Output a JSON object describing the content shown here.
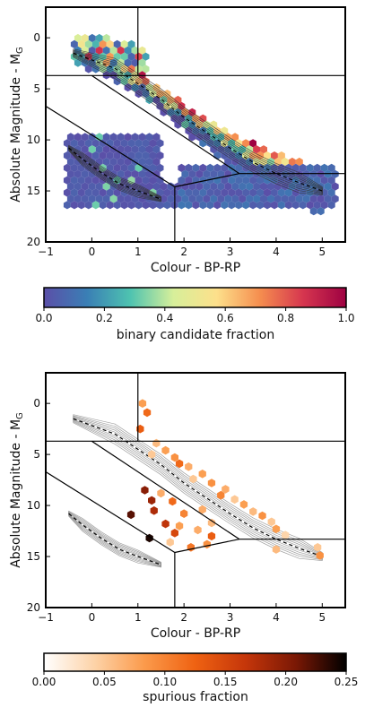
{
  "chart_data": [
    {
      "type": "heatmap",
      "plot_kind": "hexbin Hertzsprung-Russell diagram with density contours",
      "xlabel": "Colour - BP-RP",
      "ylabel": "Absolute Magnitude - M",
      "ylabel_subscript": "G",
      "xlim": [
        -1,
        5.5
      ],
      "ylim": [
        20,
        -3
      ],
      "y_inverted": true,
      "xticks": [
        "−1",
        "0",
        "1",
        "2",
        "3",
        "4",
        "5"
      ],
      "xtick_values": [
        -1,
        0,
        1,
        2,
        3,
        4,
        5
      ],
      "yticks": [
        "0",
        "5",
        "10",
        "15",
        "20"
      ],
      "ytick_values": [
        0,
        5,
        10,
        15,
        20
      ],
      "colorbar": {
        "label": "binary candidate fraction",
        "range": [
          0.0,
          1.0
        ],
        "ticks": [
          "0.0",
          "0.2",
          "0.4",
          "0.6",
          "0.8",
          "1.0"
        ],
        "tick_values": [
          0.0,
          0.2,
          0.4,
          0.6,
          0.8,
          1.0
        ],
        "colormap": "plasma-viridis (indigo to yellow to crimson)",
        "stops": [
          "#5b4fa8",
          "#3a7fb5",
          "#4ec3b0",
          "#d7ef9a",
          "#fde08b",
          "#f58e4f",
          "#d6364f",
          "#9e0142"
        ]
      },
      "regions": [
        {
          "name": "main sequence",
          "points": [
            [
              -0.4,
              1.5
            ],
            [
              0.5,
              3
            ],
            [
              1.0,
              4.5
            ],
            [
              1.5,
              6
            ],
            [
              2.0,
              7.8
            ],
            [
              2.5,
              9.3
            ],
            [
              3.0,
              10.8
            ],
            [
              3.5,
              12.2
            ],
            [
              4.0,
              13.3
            ],
            [
              4.5,
              14.2
            ],
            [
              5.0,
              15.0
            ]
          ]
        },
        {
          "name": "white dwarf sequence",
          "points": [
            [
              -0.5,
              10.8
            ],
            [
              -0.2,
              11.9
            ],
            [
              0.2,
              13.2
            ],
            [
              0.6,
              14.3
            ],
            [
              1.0,
              15.0
            ],
            [
              1.5,
              15.8
            ]
          ]
        }
      ],
      "dividing_lines": [
        [
          [
            1.0,
            -3
          ],
          [
            1.0,
            3.7
          ]
        ],
        [
          [
            -1,
            3.7
          ],
          [
            5.5,
            3.7
          ]
        ],
        [
          [
            0,
            3.7
          ],
          [
            3.2,
            13.3
          ]
        ],
        [
          [
            -1,
            6.7
          ],
          [
            1.8,
            14.6
          ]
        ],
        [
          [
            1.8,
            14.6
          ],
          [
            3.2,
            13.3
          ]
        ],
        [
          [
            3.2,
            13.3
          ],
          [
            5.5,
            13.3
          ]
        ],
        [
          [
            1.8,
            14.6
          ],
          [
            1.8,
            20
          ]
        ]
      ]
    },
    {
      "type": "heatmap",
      "plot_kind": "hexbin Hertzsprung-Russell diagram with density contours",
      "xlabel": "Colour - BP-RP",
      "ylabel": "Absolute Magnitude - M",
      "ylabel_subscript": "G",
      "xlim": [
        -1,
        5.5
      ],
      "ylim": [
        20,
        -3
      ],
      "y_inverted": true,
      "xticks": [
        "−1",
        "0",
        "1",
        "2",
        "3",
        "4",
        "5"
      ],
      "xtick_values": [
        -1,
        0,
        1,
        2,
        3,
        4,
        5
      ],
      "yticks": [
        "0",
        "5",
        "10",
        "15",
        "20"
      ],
      "ytick_values": [
        0,
        5,
        10,
        15,
        20
      ],
      "colorbar": {
        "label": "spurious fraction",
        "range": [
          0.0,
          0.25
        ],
        "ticks": [
          "0.00",
          "0.05",
          "0.10",
          "0.15",
          "0.20",
          "0.25"
        ],
        "tick_values": [
          0.0,
          0.05,
          0.1,
          0.15,
          0.2,
          0.25
        ],
        "colormap": "gist_heat reversed (white to orange to black)",
        "stops": [
          "#ffffff",
          "#fdd3a8",
          "#fb9a4b",
          "#ef6212",
          "#c5360a",
          "#7a1805",
          "#000000"
        ]
      },
      "points": [
        {
          "x": 1.1,
          "y": 0.0,
          "v": 0.08
        },
        {
          "x": 1.2,
          "y": 0.9,
          "v": 0.12
        },
        {
          "x": 1.05,
          "y": 2.5,
          "v": 0.13
        },
        {
          "x": 1.4,
          "y": 3.9,
          "v": 0.06
        },
        {
          "x": 1.6,
          "y": 4.6,
          "v": 0.08
        },
        {
          "x": 1.3,
          "y": 5.0,
          "v": 0.05
        },
        {
          "x": 1.8,
          "y": 5.3,
          "v": 0.09
        },
        {
          "x": 2.1,
          "y": 6.2,
          "v": 0.07
        },
        {
          "x": 1.9,
          "y": 5.9,
          "v": 0.12
        },
        {
          "x": 2.4,
          "y": 6.9,
          "v": 0.08
        },
        {
          "x": 2.2,
          "y": 7.4,
          "v": 0.05
        },
        {
          "x": 2.6,
          "y": 7.8,
          "v": 0.09
        },
        {
          "x": 2.9,
          "y": 8.4,
          "v": 0.07
        },
        {
          "x": 2.8,
          "y": 9.0,
          "v": 0.1
        },
        {
          "x": 3.1,
          "y": 9.4,
          "v": 0.05
        },
        {
          "x": 3.3,
          "y": 9.9,
          "v": 0.08
        },
        {
          "x": 3.5,
          "y": 10.6,
          "v": 0.06
        },
        {
          "x": 3.7,
          "y": 11.0,
          "v": 0.09
        },
        {
          "x": 3.9,
          "y": 11.6,
          "v": 0.05
        },
        {
          "x": 4.0,
          "y": 12.3,
          "v": 0.08
        },
        {
          "x": 4.2,
          "y": 12.9,
          "v": 0.04
        },
        {
          "x": 4.0,
          "y": 14.3,
          "v": 0.06
        },
        {
          "x": 4.9,
          "y": 14.1,
          "v": 0.05
        },
        {
          "x": 4.95,
          "y": 14.9,
          "v": 0.09
        },
        {
          "x": 2.3,
          "y": 12.4,
          "v": 0.07
        },
        {
          "x": 2.5,
          "y": 13.8,
          "v": 0.09
        },
        {
          "x": 1.9,
          "y": 12.0,
          "v": 0.08
        },
        {
          "x": 1.7,
          "y": 13.6,
          "v": 0.05
        },
        {
          "x": 2.6,
          "y": 11.7,
          "v": 0.06
        },
        {
          "x": 2.4,
          "y": 10.4,
          "v": 0.07
        },
        {
          "x": 2.0,
          "y": 10.8,
          "v": 0.1
        },
        {
          "x": 1.75,
          "y": 9.6,
          "v": 0.12
        },
        {
          "x": 1.5,
          "y": 8.8,
          "v": 0.07
        },
        {
          "x": 1.3,
          "y": 9.5,
          "v": 0.19
        },
        {
          "x": 1.35,
          "y": 10.5,
          "v": 0.18
        },
        {
          "x": 0.85,
          "y": 10.9,
          "v": 0.22
        },
        {
          "x": 1.15,
          "y": 8.5,
          "v": 0.2
        },
        {
          "x": 1.6,
          "y": 11.8,
          "v": 0.17
        },
        {
          "x": 1.25,
          "y": 13.2,
          "v": 0.24
        },
        {
          "x": 1.8,
          "y": 12.7,
          "v": 0.15
        },
        {
          "x": 2.15,
          "y": 14.1,
          "v": 0.11
        },
        {
          "x": 2.6,
          "y": 13.0,
          "v": 0.13
        }
      ],
      "regions": [
        {
          "name": "main sequence",
          "points": [
            [
              -0.4,
              1.5
            ],
            [
              0.5,
              3
            ],
            [
              1.0,
              4.5
            ],
            [
              1.5,
              6
            ],
            [
              2.0,
              7.8
            ],
            [
              2.5,
              9.3
            ],
            [
              3.0,
              10.8
            ],
            [
              3.5,
              12.2
            ],
            [
              4.0,
              13.3
            ],
            [
              4.5,
              14.2
            ],
            [
              5.0,
              15.0
            ]
          ]
        },
        {
          "name": "white dwarf sequence",
          "points": [
            [
              -0.5,
              10.8
            ],
            [
              -0.2,
              11.9
            ],
            [
              0.2,
              13.2
            ],
            [
              0.6,
              14.3
            ],
            [
              1.0,
              15.0
            ],
            [
              1.5,
              15.8
            ]
          ]
        }
      ],
      "dividing_lines": [
        [
          [
            1.0,
            -3
          ],
          [
            1.0,
            3.7
          ]
        ],
        [
          [
            -1,
            3.7
          ],
          [
            5.5,
            3.7
          ]
        ],
        [
          [
            0,
            3.7
          ],
          [
            3.2,
            13.3
          ]
        ],
        [
          [
            -1,
            6.7
          ],
          [
            1.8,
            14.6
          ]
        ],
        [
          [
            1.8,
            14.6
          ],
          [
            3.2,
            13.3
          ]
        ],
        [
          [
            3.2,
            13.3
          ],
          [
            5.5,
            13.3
          ]
        ],
        [
          [
            1.8,
            14.6
          ],
          [
            1.8,
            20
          ]
        ]
      ]
    }
  ]
}
